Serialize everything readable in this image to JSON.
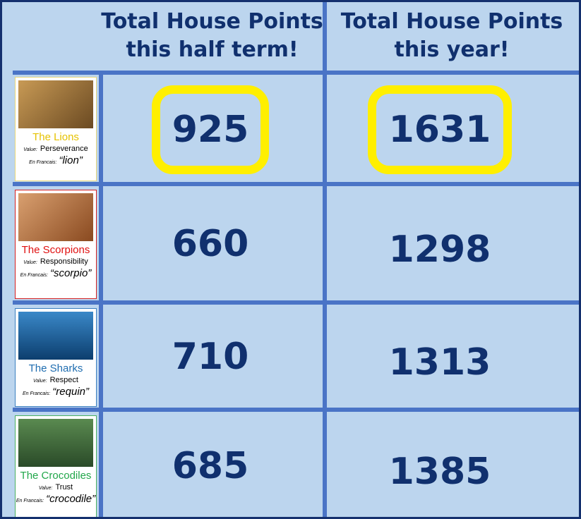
{
  "header": {
    "columns": [
      "Total House Points this half term!",
      "Total House Points this year!"
    ]
  },
  "houses": [
    {
      "name": "The Lions",
      "value_label": "Value:",
      "value": "Perseverance",
      "french_label": "En Francais:",
      "french": "“lion”",
      "half_term": 925,
      "year": 1631
    },
    {
      "name": "The Scorpions",
      "value_label": "Value:",
      "value": "Responsibility",
      "french_label": "En Francais:",
      "french": "“scorpio”",
      "half_term": 660,
      "year": 1298
    },
    {
      "name": "The Sharks",
      "value_label": "Value:",
      "value": "Respect",
      "french_label": "En Francais:",
      "french": "“requin”",
      "half_term": 710,
      "year": 1313
    },
    {
      "name": "The Crocodiles",
      "value_label": "Value:",
      "value": "Trust",
      "french_label": "En Francais:",
      "french": "“crocodile”",
      "half_term": 685,
      "year": 1385
    }
  ]
}
